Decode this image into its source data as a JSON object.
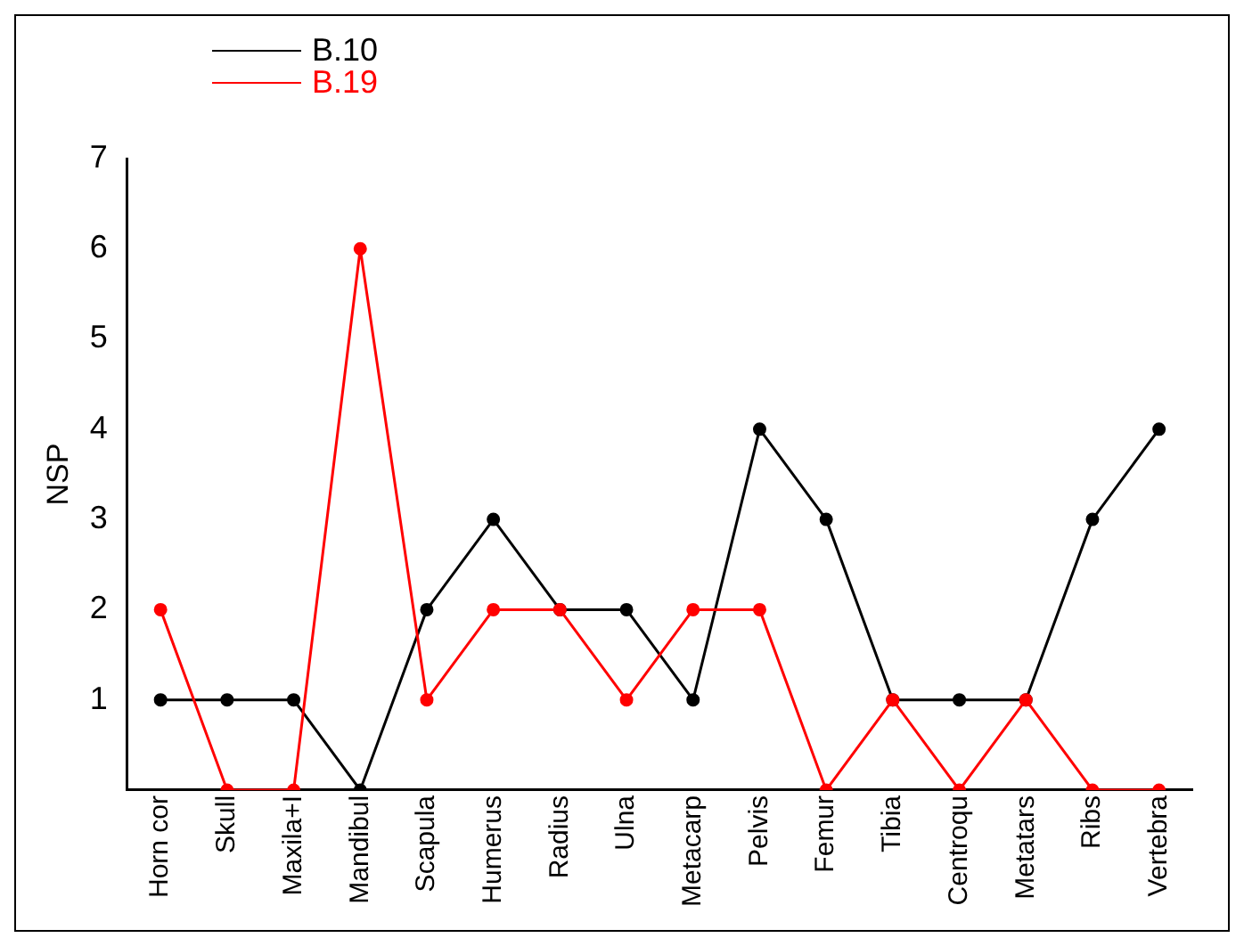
{
  "chart_data": {
    "type": "line",
    "ylabel": "NSP",
    "categories": [
      "Horn cor",
      "Skull",
      "Maxila+I",
      "Mandibul",
      "Scapula",
      "Humerus",
      "Radius",
      "Ulna",
      "Metacarp",
      "Pelvis",
      "Femur",
      "Tibia",
      "Centroqu",
      "Metatars",
      "Ribs",
      "Vertebra"
    ],
    "series": [
      {
        "name": "B.10",
        "color": "#000000",
        "values": [
          1,
          1,
          1,
          0,
          2,
          3,
          2,
          2,
          1,
          4,
          3,
          1,
          1,
          1,
          3,
          4
        ]
      },
      {
        "name": "B.19",
        "color": "#ff0000",
        "values": [
          2,
          0,
          0,
          6,
          1,
          2,
          2,
          1,
          2,
          2,
          0,
          1,
          0,
          1,
          0,
          0
        ]
      }
    ],
    "ylim": [
      0,
      7
    ],
    "yticks": [
      1,
      2,
      3,
      4,
      5,
      6,
      7
    ],
    "grid": false,
    "legend": "top left",
    "marker": "circle",
    "line_style": "solid"
  }
}
